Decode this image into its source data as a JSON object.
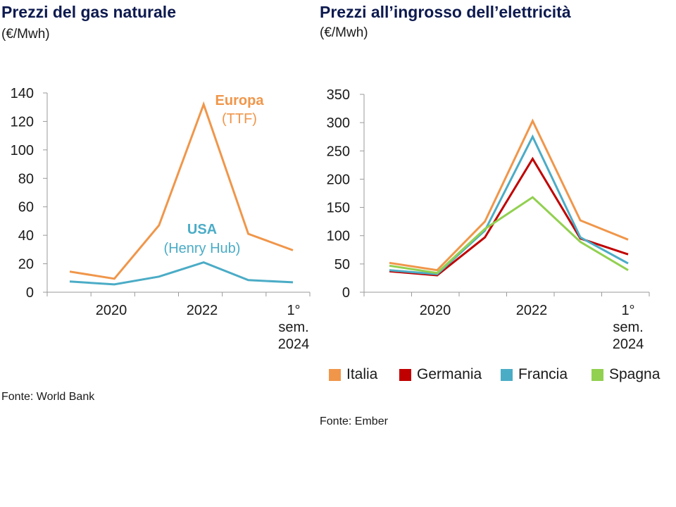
{
  "chart_data": [
    {
      "type": "line",
      "title": "Prezzi del gas naturale",
      "unit": "(€/Mwh)",
      "source": "Fonte: World Bank",
      "ylim": [
        0,
        140
      ],
      "yticks": [
        0,
        20,
        40,
        60,
        80,
        100,
        120,
        140
      ],
      "x": [
        2019,
        2020,
        2021,
        2022,
        2023,
        2024
      ],
      "xtick_labels": [
        {
          "lines": [
            "2020"
          ]
        },
        {
          "lines": [
            "2022"
          ]
        },
        {
          "lines": [
            "1°",
            "sem.",
            "2024"
          ]
        }
      ],
      "series": [
        {
          "name": "Europa",
          "sublabel": "(TTF)",
          "color": "#f0964a",
          "values": [
            14.5,
            9.5,
            47,
            132,
            41,
            29.5
          ]
        },
        {
          "name": "USA",
          "sublabel": "(Henry Hub)",
          "color": "#4bacc6",
          "values": [
            7.5,
            5.5,
            11,
            21,
            8.5,
            7
          ]
        }
      ]
    },
    {
      "type": "line",
      "title": "Prezzi all’ingrosso dell’elettricità",
      "unit": "(€/Mwh)",
      "source": "Fonte: Ember",
      "ylim": [
        0,
        350
      ],
      "yticks": [
        0,
        50,
        100,
        150,
        200,
        250,
        300,
        350
      ],
      "x": [
        2019,
        2020,
        2021,
        2022,
        2023,
        2024
      ],
      "xtick_labels": [
        {
          "lines": [
            "2020"
          ]
        },
        {
          "lines": [
            "2022"
          ]
        },
        {
          "lines": [
            "1°",
            "sem.",
            "2024"
          ]
        }
      ],
      "series": [
        {
          "name": "Italia",
          "color": "#f0964a",
          "values": [
            52,
            39,
            125,
            303,
            127,
            93
          ]
        },
        {
          "name": "Germania",
          "color": "#c00000",
          "values": [
            37,
            30,
            97,
            236,
            95,
            67
          ]
        },
        {
          "name": "Francia",
          "color": "#4bacc6",
          "values": [
            39,
            32,
            109,
            275,
            97,
            51
          ]
        },
        {
          "name": "Spagna",
          "color": "#92d050",
          "values": [
            47,
            34,
            112,
            168,
            89,
            39
          ]
        }
      ]
    }
  ]
}
